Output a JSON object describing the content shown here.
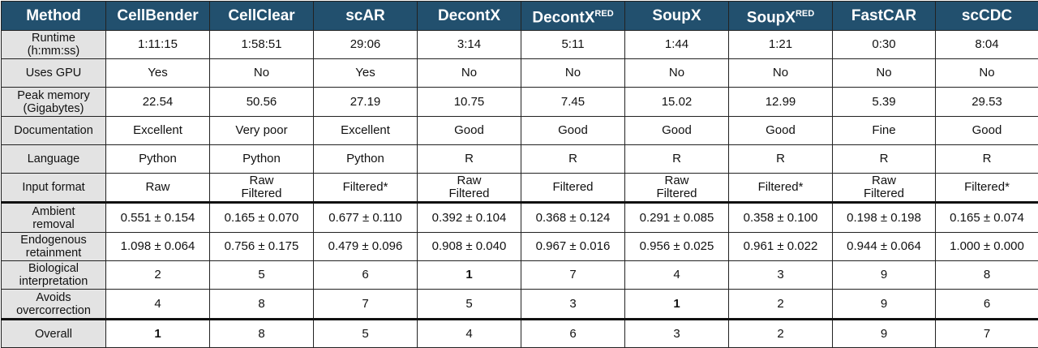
{
  "header": {
    "method": "Method",
    "methods": [
      {
        "name": "CellBender",
        "sup": ""
      },
      {
        "name": "CellClear",
        "sup": ""
      },
      {
        "name": "scAR",
        "sup": ""
      },
      {
        "name": "DecontX",
        "sup": ""
      },
      {
        "name": "DecontX",
        "sup": "RED"
      },
      {
        "name": "SoupX",
        "sup": ""
      },
      {
        "name": "SoupX",
        "sup": "RED"
      },
      {
        "name": "FastCAR",
        "sup": ""
      },
      {
        "name": "scCDC",
        "sup": ""
      }
    ]
  },
  "rows": {
    "runtime": {
      "label1": "Runtime",
      "label2": "(h:mm:ss)",
      "values": [
        "1:11:15",
        "1:58:51",
        "29:06",
        "3:14",
        "5:11",
        "1:44",
        "1:21",
        "0:30",
        "8:04"
      ]
    },
    "gpu": {
      "label": "Uses GPU",
      "values": [
        "Yes",
        "No",
        "Yes",
        "No",
        "No",
        "No",
        "No",
        "No",
        "No"
      ]
    },
    "memory": {
      "label1": "Peak memory",
      "label2": "(Gigabytes)",
      "values": [
        "22.54",
        "50.56",
        "27.19",
        "10.75",
        "7.45",
        "15.02",
        "12.99",
        "5.39",
        "29.53"
      ]
    },
    "documentation": {
      "label": "Documentation",
      "values": [
        "Excellent",
        "Very poor",
        "Excellent",
        "Good",
        "Good",
        "Good",
        "Good",
        "Fine",
        "Good"
      ]
    },
    "language": {
      "label": "Language",
      "values": [
        "Python",
        "Python",
        "Python",
        "R",
        "R",
        "R",
        "R",
        "R",
        "R"
      ]
    },
    "input": {
      "label": "Input format",
      "values": [
        [
          "Raw"
        ],
        [
          "Raw",
          "Filtered"
        ],
        [
          "Filtered*"
        ],
        [
          "Raw",
          "Filtered"
        ],
        [
          "Filtered"
        ],
        [
          "Raw",
          "Filtered"
        ],
        [
          "Filtered*"
        ],
        [
          "Raw",
          "Filtered"
        ],
        [
          "Filtered*"
        ]
      ]
    },
    "ambient": {
      "label1": "Ambient",
      "label2": "removal",
      "values": [
        "0.551 ± 0.154",
        "0.165 ± 0.070",
        "0.677 ± 0.110",
        "0.392 ± 0.104",
        "0.368 ± 0.124",
        "0.291 ± 0.085",
        "0.358 ± 0.100",
        "0.198 ± 0.198",
        "0.165 ± 0.074"
      ]
    },
    "endogenous": {
      "label1": "Endogenous",
      "label2": "retainment",
      "values": [
        "1.098 ± 0.064",
        "0.756 ± 0.175",
        "0.479 ± 0.096",
        "0.908 ± 0.040",
        "0.967 ± 0.016",
        "0.956 ± 0.025",
        "0.961 ± 0.022",
        "0.944 ± 0.064",
        "1.000 ± 0.000"
      ]
    },
    "biological": {
      "label1": "Biological",
      "label2": "interpretation",
      "values": [
        "2",
        "5",
        "6",
        "1",
        "7",
        "4",
        "3",
        "9",
        "8"
      ],
      "bold": [
        false,
        false,
        false,
        true,
        false,
        false,
        false,
        false,
        false
      ]
    },
    "avoids": {
      "label1": "Avoids",
      "label2": "overcorrection",
      "values": [
        "4",
        "8",
        "7",
        "5",
        "3",
        "1",
        "2",
        "9",
        "6"
      ],
      "bold": [
        false,
        false,
        false,
        false,
        false,
        true,
        false,
        false,
        false
      ]
    },
    "overall": {
      "label": "Overall",
      "values": [
        "1",
        "8",
        "5",
        "4",
        "6",
        "3",
        "2",
        "9",
        "7"
      ],
      "bold": [
        true,
        false,
        false,
        false,
        false,
        false,
        false,
        false,
        false
      ]
    }
  },
  "colors": {
    "header_bg": "#22506e",
    "label_bg": "#e3e3e3"
  }
}
